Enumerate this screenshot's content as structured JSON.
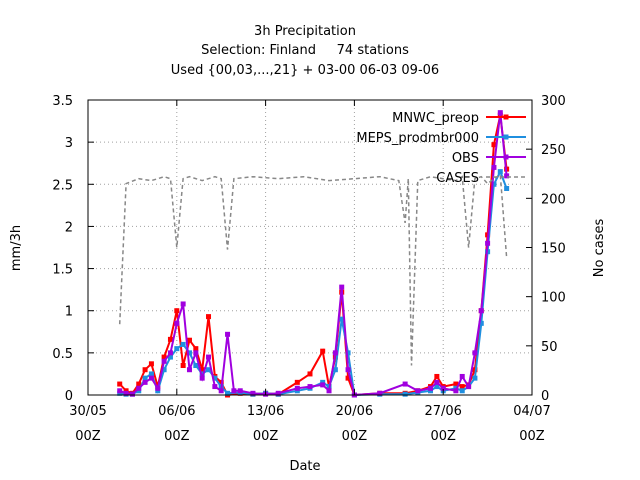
{
  "chart_data": {
    "type": "line",
    "title_lines": [
      "3h Precipitation",
      "Selection: Finland     74 stations",
      "Used {00,03,...,21} + 03-00 06-03 09-06"
    ],
    "xlabel": "Date",
    "ylabel": "mm/3h",
    "y2label": "No cases",
    "xlim": [
      "2023-05-30T00:00",
      "2023-07-04T00:00"
    ],
    "ylim": [
      0,
      3.5
    ],
    "y2lim": [
      0,
      300
    ],
    "x_ticks": [
      {
        "x": "2023-05-30T00:00",
        "line1": "30/05",
        "line2": "00Z"
      },
      {
        "x": "2023-06-06T00:00",
        "line1": "06/06",
        "line2": "00Z"
      },
      {
        "x": "2023-06-13T00:00",
        "line1": "13/06",
        "line2": "00Z"
      },
      {
        "x": "2023-06-20T00:00",
        "line1": "20/06",
        "line2": "00Z"
      },
      {
        "x": "2023-06-27T00:00",
        "line1": "27/06",
        "line2": "00Z"
      },
      {
        "x": "2023-07-04T00:00",
        "line1": "04/07",
        "line2": "00Z"
      }
    ],
    "y_ticks": [
      "0",
      "0.5",
      "1",
      "1.5",
      "2",
      "2.5",
      "3",
      "3.5"
    ],
    "y2_ticks": [
      "0",
      "50",
      "100",
      "150",
      "200",
      "250",
      "300"
    ],
    "grid": true,
    "legend_position": "top-right",
    "series": [
      {
        "name": "MNWC_preop",
        "color": "#ff0000",
        "marker": "square",
        "axis": "y",
        "points": [
          [
            "2023-06-01T12:00",
            0.13
          ],
          [
            "2023-06-02T00:00",
            0.05
          ],
          [
            "2023-06-02T12:00",
            0.02
          ],
          [
            "2023-06-03T00:00",
            0.13
          ],
          [
            "2023-06-03T12:00",
            0.3
          ],
          [
            "2023-06-04T00:00",
            0.37
          ],
          [
            "2023-06-04T12:00",
            0.1
          ],
          [
            "2023-06-05T00:00",
            0.45
          ],
          [
            "2023-06-05T12:00",
            0.66
          ],
          [
            "2023-06-06T00:00",
            1.0
          ],
          [
            "2023-06-06T12:00",
            0.35
          ],
          [
            "2023-06-07T00:00",
            0.65
          ],
          [
            "2023-06-07T12:00",
            0.55
          ],
          [
            "2023-06-08T00:00",
            0.3
          ],
          [
            "2023-06-08T12:00",
            0.93
          ],
          [
            "2023-06-09T00:00",
            0.22
          ],
          [
            "2023-06-09T12:00",
            0.15
          ],
          [
            "2023-06-10T00:00",
            0.0
          ],
          [
            "2023-06-11T00:00",
            0.02
          ],
          [
            "2023-06-12T00:00",
            0.01
          ],
          [
            "2023-06-13T00:00",
            0.02
          ],
          [
            "2023-06-14T00:00",
            0.01
          ],
          [
            "2023-06-15T12:00",
            0.15
          ],
          [
            "2023-06-16T12:00",
            0.25
          ],
          [
            "2023-06-17T12:00",
            0.52
          ],
          [
            "2023-06-18T00:00",
            0.1
          ],
          [
            "2023-06-18T12:00",
            0.45
          ],
          [
            "2023-06-19T00:00",
            1.22
          ],
          [
            "2023-06-19T12:00",
            0.2
          ],
          [
            "2023-06-20T00:00",
            0.0
          ],
          [
            "2023-06-22T00:00",
            0.02
          ],
          [
            "2023-06-24T00:00",
            0.02
          ],
          [
            "2023-06-25T00:00",
            0.05
          ],
          [
            "2023-06-26T00:00",
            0.1
          ],
          [
            "2023-06-26T12:00",
            0.22
          ],
          [
            "2023-06-27T00:00",
            0.1
          ],
          [
            "2023-06-28T00:00",
            0.13
          ],
          [
            "2023-06-28T12:00",
            0.1
          ],
          [
            "2023-06-29T00:00",
            0.12
          ],
          [
            "2023-06-29T12:00",
            0.3
          ],
          [
            "2023-06-30T00:00",
            1.0
          ],
          [
            "2023-06-30T12:00",
            1.9
          ],
          [
            "2023-07-01T00:00",
            2.97
          ],
          [
            "2023-07-01T12:00",
            3.32
          ],
          [
            "2023-07-02T00:00",
            2.68
          ]
        ]
      },
      {
        "name": "MEPS_prodmbr000",
        "color": "#1f8fdf",
        "marker": "square",
        "axis": "y",
        "points": [
          [
            "2023-06-01T12:00",
            0.02
          ],
          [
            "2023-06-02T00:00",
            0.01
          ],
          [
            "2023-06-02T12:00",
            0.01
          ],
          [
            "2023-06-03T00:00",
            0.05
          ],
          [
            "2023-06-03T12:00",
            0.2
          ],
          [
            "2023-06-04T00:00",
            0.25
          ],
          [
            "2023-06-04T12:00",
            0.05
          ],
          [
            "2023-06-05T00:00",
            0.3
          ],
          [
            "2023-06-05T12:00",
            0.45
          ],
          [
            "2023-06-06T00:00",
            0.55
          ],
          [
            "2023-06-06T12:00",
            0.6
          ],
          [
            "2023-06-07T00:00",
            0.5
          ],
          [
            "2023-06-07T12:00",
            0.35
          ],
          [
            "2023-06-08T00:00",
            0.25
          ],
          [
            "2023-06-08T12:00",
            0.3
          ],
          [
            "2023-06-09T00:00",
            0.2
          ],
          [
            "2023-06-09T12:00",
            0.1
          ],
          [
            "2023-06-10T00:00",
            0.02
          ],
          [
            "2023-06-11T00:00",
            0.03
          ],
          [
            "2023-06-12T00:00",
            0.01
          ],
          [
            "2023-06-13T00:00",
            0.02
          ],
          [
            "2023-06-14T00:00",
            0.01
          ],
          [
            "2023-06-15T12:00",
            0.05
          ],
          [
            "2023-06-16T12:00",
            0.08
          ],
          [
            "2023-06-17T12:00",
            0.15
          ],
          [
            "2023-06-18T00:00",
            0.1
          ],
          [
            "2023-06-18T12:00",
            0.3
          ],
          [
            "2023-06-19T00:00",
            0.9
          ],
          [
            "2023-06-19T12:00",
            0.5
          ],
          [
            "2023-06-20T00:00",
            0.0
          ],
          [
            "2023-06-22T00:00",
            0.01
          ],
          [
            "2023-06-24T00:00",
            0.01
          ],
          [
            "2023-06-25T00:00",
            0.03
          ],
          [
            "2023-06-26T00:00",
            0.05
          ],
          [
            "2023-06-26T12:00",
            0.1
          ],
          [
            "2023-06-27T00:00",
            0.05
          ],
          [
            "2023-06-28T00:00",
            0.08
          ],
          [
            "2023-06-28T12:00",
            0.05
          ],
          [
            "2023-06-29T00:00",
            0.1
          ],
          [
            "2023-06-29T12:00",
            0.2
          ],
          [
            "2023-06-30T00:00",
            0.85
          ],
          [
            "2023-06-30T12:00",
            1.7
          ],
          [
            "2023-07-01T00:00",
            2.5
          ],
          [
            "2023-07-01T12:00",
            2.65
          ],
          [
            "2023-07-02T00:00",
            2.45
          ]
        ]
      },
      {
        "name": "OBS",
        "color": "#a000df",
        "marker": "square",
        "axis": "y",
        "points": [
          [
            "2023-06-01T12:00",
            0.05
          ],
          [
            "2023-06-02T00:00",
            0.02
          ],
          [
            "2023-06-02T12:00",
            0.01
          ],
          [
            "2023-06-03T00:00",
            0.08
          ],
          [
            "2023-06-03T12:00",
            0.15
          ],
          [
            "2023-06-04T00:00",
            0.2
          ],
          [
            "2023-06-04T12:00",
            0.08
          ],
          [
            "2023-06-05T00:00",
            0.4
          ],
          [
            "2023-06-05T12:00",
            0.5
          ],
          [
            "2023-06-06T00:00",
            0.85
          ],
          [
            "2023-06-06T12:00",
            1.08
          ],
          [
            "2023-06-07T00:00",
            0.3
          ],
          [
            "2023-06-07T12:00",
            0.5
          ],
          [
            "2023-06-08T00:00",
            0.2
          ],
          [
            "2023-06-08T12:00",
            0.45
          ],
          [
            "2023-06-09T00:00",
            0.1
          ],
          [
            "2023-06-09T12:00",
            0.05
          ],
          [
            "2023-06-10T00:00",
            0.72
          ],
          [
            "2023-06-10T12:00",
            0.05
          ],
          [
            "2023-06-11T00:00",
            0.05
          ],
          [
            "2023-06-12T00:00",
            0.02
          ],
          [
            "2023-06-13T00:00",
            0.01
          ],
          [
            "2023-06-14T00:00",
            0.02
          ],
          [
            "2023-06-15T12:00",
            0.08
          ],
          [
            "2023-06-16T12:00",
            0.1
          ],
          [
            "2023-06-17T12:00",
            0.12
          ],
          [
            "2023-06-18T00:00",
            0.05
          ],
          [
            "2023-06-18T12:00",
            0.5
          ],
          [
            "2023-06-19T00:00",
            1.28
          ],
          [
            "2023-06-19T12:00",
            0.3
          ],
          [
            "2023-06-20T00:00",
            0.0
          ],
          [
            "2023-06-22T00:00",
            0.02
          ],
          [
            "2023-06-24T00:00",
            0.13
          ],
          [
            "2023-06-25T00:00",
            0.05
          ],
          [
            "2023-06-26T00:00",
            0.08
          ],
          [
            "2023-06-26T12:00",
            0.15
          ],
          [
            "2023-06-27T00:00",
            0.08
          ],
          [
            "2023-06-28T00:00",
            0.05
          ],
          [
            "2023-06-28T12:00",
            0.22
          ],
          [
            "2023-06-29T00:00",
            0.1
          ],
          [
            "2023-06-29T12:00",
            0.5
          ],
          [
            "2023-06-30T00:00",
            1.0
          ],
          [
            "2023-06-30T12:00",
            1.8
          ],
          [
            "2023-07-01T00:00",
            2.7
          ],
          [
            "2023-07-01T12:00",
            3.35
          ],
          [
            "2023-07-02T00:00",
            2.6
          ]
        ]
      },
      {
        "name": "CASES",
        "color": "#888888",
        "marker": "none",
        "dash": true,
        "axis": "y2",
        "points": [
          [
            "2023-06-01T12:00",
            72
          ],
          [
            "2023-06-02T00:00",
            215
          ],
          [
            "2023-06-03T00:00",
            220
          ],
          [
            "2023-06-04T00:00",
            218
          ],
          [
            "2023-06-05T00:00",
            222
          ],
          [
            "2023-06-05T12:00",
            220
          ],
          [
            "2023-06-06T00:00",
            150
          ],
          [
            "2023-06-06T12:00",
            220
          ],
          [
            "2023-06-07T00:00",
            222
          ],
          [
            "2023-06-08T00:00",
            218
          ],
          [
            "2023-06-09T00:00",
            222
          ],
          [
            "2023-06-09T12:00",
            220
          ],
          [
            "2023-06-10T00:00",
            148
          ],
          [
            "2023-06-10T12:00",
            220
          ],
          [
            "2023-06-12T00:00",
            222
          ],
          [
            "2023-06-14T00:00",
            220
          ],
          [
            "2023-06-16T00:00",
            222
          ],
          [
            "2023-06-18T00:00",
            218
          ],
          [
            "2023-06-20T00:00",
            220
          ],
          [
            "2023-06-22T00:00",
            222
          ],
          [
            "2023-06-23T12:00",
            218
          ],
          [
            "2023-06-24T00:00",
            175
          ],
          [
            "2023-06-24T06:00",
            220
          ],
          [
            "2023-06-24T12:00",
            30
          ],
          [
            "2023-06-25T00:00",
            218
          ],
          [
            "2023-06-26T00:00",
            222
          ],
          [
            "2023-06-27T00:00",
            220
          ],
          [
            "2023-06-28T00:00",
            218
          ],
          [
            "2023-06-28T12:00",
            222
          ],
          [
            "2023-06-29T00:00",
            150
          ],
          [
            "2023-06-29T12:00",
            220
          ],
          [
            "2023-06-30T00:00",
            222
          ],
          [
            "2023-06-30T12:00",
            215
          ],
          [
            "2023-07-01T00:00",
            220
          ],
          [
            "2023-07-01T12:00",
            224
          ],
          [
            "2023-07-02T00:00",
            140
          ]
        ]
      }
    ]
  }
}
